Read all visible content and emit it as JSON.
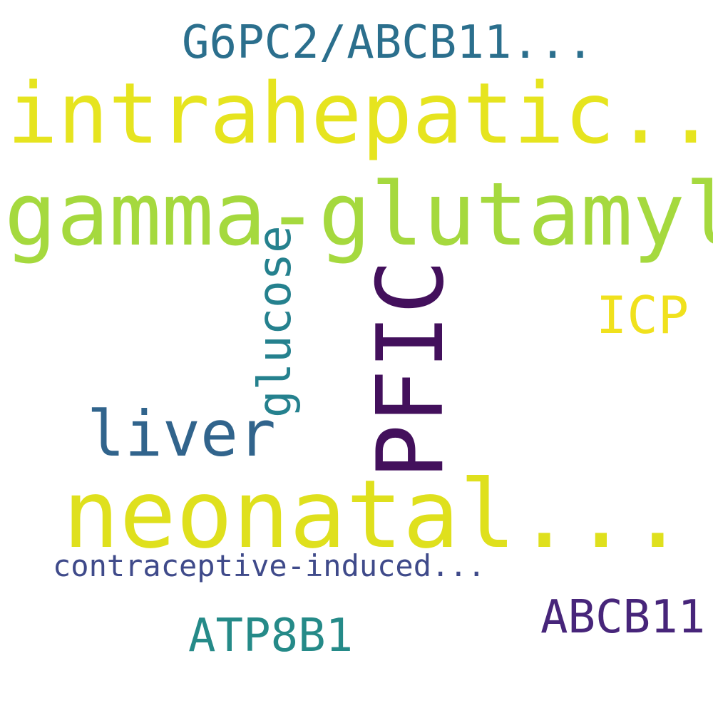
{
  "words": [
    {
      "id": "gamma-glutamyl",
      "text": "gamma-glutamyl",
      "color": "#a5d93e"
    },
    {
      "id": "intrahepatic",
      "text": "intrahepatic...",
      "color": "#e6e41f"
    },
    {
      "id": "neonatal",
      "text": "neonatal...",
      "color": "#dfe01d"
    },
    {
      "id": "pfic",
      "text": "PFIC",
      "color": "#43105c"
    },
    {
      "id": "liver",
      "text": "liver",
      "color": "#31648c"
    },
    {
      "id": "glucose",
      "text": "glucose",
      "color": "#25818e"
    },
    {
      "id": "g6pc2-abcb11",
      "text": "G6PC2/ABCB11...",
      "color": "#2b6f8d"
    },
    {
      "id": "icp",
      "text": "ICP",
      "color": "#f0e11d"
    },
    {
      "id": "contraceptive-induced",
      "text": "contraceptive-induced...",
      "color": "#3f4a8a"
    },
    {
      "id": "abcb11",
      "text": "ABCB11",
      "color": "#47257a"
    },
    {
      "id": "atp8b1",
      "text": "ATP8B1",
      "color": "#258a88"
    }
  ]
}
